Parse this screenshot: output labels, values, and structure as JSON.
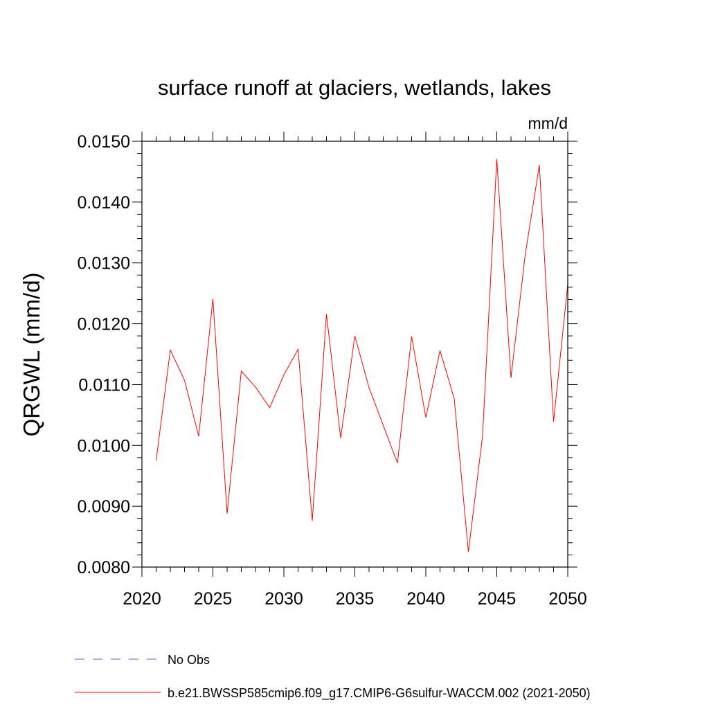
{
  "chart_data": {
    "type": "line",
    "title": "surface runoff at glaciers, wetlands, lakes",
    "units": "mm/d",
    "ylabel": "QRGWL  (mm/d)",
    "xlabel": "",
    "xlim": [
      2020,
      2050
    ],
    "ylim": [
      0.008,
      0.015
    ],
    "xticks": [
      2020,
      2025,
      2030,
      2035,
      2040,
      2045,
      2050
    ],
    "xtick_labels": [
      "2020",
      "2025",
      "2030",
      "2035",
      "2040",
      "2045",
      "2050"
    ],
    "yticks": [
      0.008,
      0.009,
      0.01,
      0.011,
      0.012,
      0.013,
      0.014,
      0.015
    ],
    "ytick_labels": [
      "0.0080",
      "0.0090",
      "0.0100",
      "0.0110",
      "0.0120",
      "0.0130",
      "0.0140",
      "0.0150"
    ],
    "grid": false,
    "legend_position": "bottom",
    "series": [
      {
        "name": "b.e21.BWSSP585cmip6.f09_g17.CMIP6-G6sulfur-WACCM.002 (2021-2050)",
        "color": "#ff0000",
        "x": [
          2021,
          2022,
          2023,
          2024,
          2025,
          2026,
          2027,
          2028,
          2029,
          2030,
          2031,
          2032,
          2033,
          2034,
          2035,
          2036,
          2037,
          2038,
          2039,
          2040,
          2041,
          2042,
          2043,
          2044,
          2045,
          2046,
          2047,
          2048,
          2049,
          2050
        ],
        "y": [
          0.00975,
          0.01157,
          0.01107,
          0.01015,
          0.01241,
          0.00888,
          0.01122,
          0.01096,
          0.01062,
          0.01116,
          0.01158,
          0.00876,
          0.01216,
          0.01012,
          0.0118,
          0.01095,
          0.01033,
          0.00971,
          0.01179,
          0.01046,
          0.01156,
          0.01077,
          0.00825,
          0.01016,
          0.01471,
          0.01111,
          0.01313,
          0.01461,
          0.01039,
          0.01265
        ]
      }
    ],
    "legend": [
      {
        "label": "No Obs",
        "color": "#6a5acd",
        "dash": "dashed"
      },
      {
        "label": "b.e21.BWSSP585cmip6.f09_g17.CMIP6-G6sulfur-WACCM.002 (2021-2050)",
        "color": "#ff0000",
        "dash": "solid"
      }
    ]
  }
}
